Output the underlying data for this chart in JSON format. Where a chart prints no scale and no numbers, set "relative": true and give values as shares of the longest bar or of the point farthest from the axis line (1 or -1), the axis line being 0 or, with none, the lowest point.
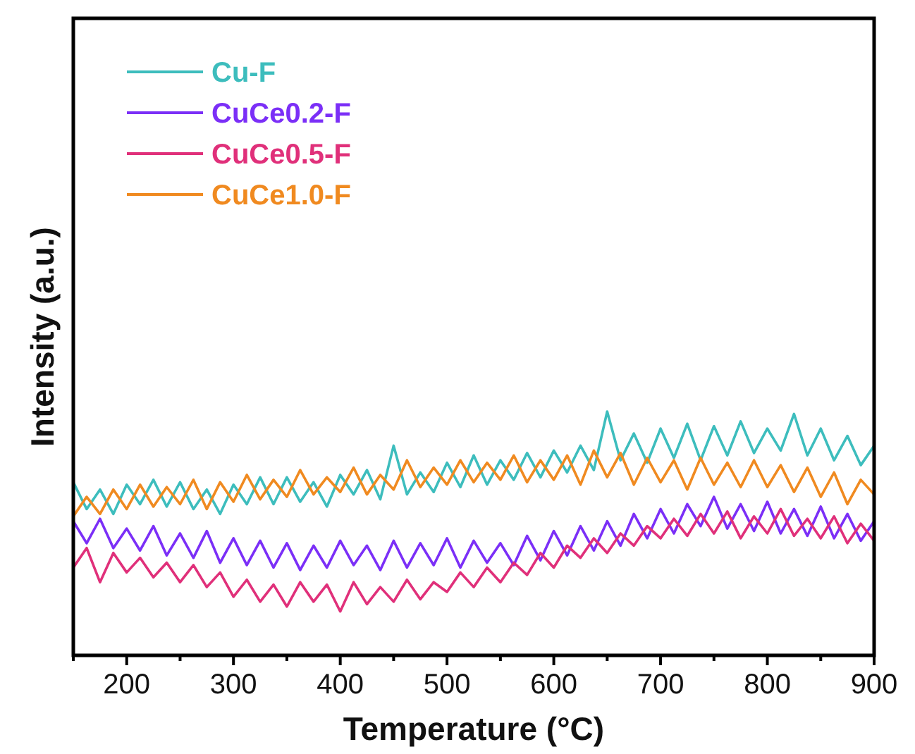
{
  "chart_data": {
    "type": "line",
    "relative": true,
    "xlabel": "Temperature (°C)",
    "ylabel": "Intensity (a.u.)",
    "xlim": [
      150,
      900
    ],
    "xticks": [
      {
        "value": 150,
        "label": null
      },
      200,
      {
        "value": 250,
        "label": null
      },
      300,
      {
        "value": 350,
        "label": null
      },
      400,
      {
        "value": 450,
        "label": null
      },
      500,
      {
        "value": 550,
        "label": null
      },
      600,
      {
        "value": 650,
        "label": null
      },
      700,
      {
        "value": 750,
        "label": null
      },
      800,
      {
        "value": 850,
        "label": null
      },
      900
    ],
    "legend": "top left",
    "grid": false,
    "marker": "none",
    "line_style": "solid",
    "x": [
      150,
      162.5,
      175,
      187.5,
      200,
      212.5,
      225,
      237.5,
      250,
      262.5,
      275,
      287.5,
      300,
      312.5,
      325,
      337.5,
      350,
      362.5,
      375,
      387.5,
      400,
      412.5,
      425,
      437.5,
      450,
      462.5,
      475,
      487.5,
      500,
      512.5,
      525,
      537.5,
      550,
      562.5,
      575,
      587.5,
      600,
      612.5,
      625,
      637.5,
      650,
      662.5,
      675,
      687.5,
      700,
      712.5,
      725,
      737.5,
      750,
      762.5,
      775,
      787.5,
      800,
      812.5,
      825,
      837.5,
      850,
      862.5,
      875,
      887.5,
      900
    ],
    "series": [
      {
        "name": "Cu-F",
        "color": "#3dbdbd",
        "values": [
          0.71,
          0.6,
          0.68,
          0.58,
          0.7,
          0.62,
          0.72,
          0.61,
          0.71,
          0.6,
          0.68,
          0.58,
          0.7,
          0.62,
          0.73,
          0.62,
          0.73,
          0.63,
          0.71,
          0.61,
          0.74,
          0.66,
          0.76,
          0.64,
          0.86,
          0.66,
          0.75,
          0.67,
          0.79,
          0.69,
          0.82,
          0.7,
          0.8,
          0.72,
          0.83,
          0.73,
          0.84,
          0.75,
          0.86,
          0.76,
          1.0,
          0.8,
          0.91,
          0.79,
          0.93,
          0.81,
          0.95,
          0.8,
          0.94,
          0.82,
          0.96,
          0.83,
          0.93,
          0.84,
          0.99,
          0.82,
          0.93,
          0.8,
          0.9,
          0.78,
          0.86
        ]
      },
      {
        "name": "CuCe0.2-F",
        "color": "#7b2ff7",
        "values": [
          0.55,
          0.46,
          0.56,
          0.44,
          0.52,
          0.43,
          0.53,
          0.41,
          0.5,
          0.4,
          0.51,
          0.38,
          0.48,
          0.37,
          0.47,
          0.36,
          0.46,
          0.35,
          0.45,
          0.36,
          0.47,
          0.37,
          0.45,
          0.35,
          0.47,
          0.36,
          0.46,
          0.37,
          0.48,
          0.36,
          0.47,
          0.38,
          0.46,
          0.37,
          0.49,
          0.39,
          0.51,
          0.41,
          0.53,
          0.43,
          0.55,
          0.45,
          0.58,
          0.48,
          0.6,
          0.5,
          0.62,
          0.53,
          0.65,
          0.52,
          0.62,
          0.51,
          0.63,
          0.5,
          0.6,
          0.49,
          0.61,
          0.48,
          0.58,
          0.47,
          0.55
        ]
      },
      {
        "name": "CuCe0.5-F",
        "color": "#e0307a",
        "values": [
          0.36,
          0.44,
          0.3,
          0.42,
          0.34,
          0.4,
          0.32,
          0.38,
          0.3,
          0.37,
          0.28,
          0.34,
          0.24,
          0.31,
          0.22,
          0.29,
          0.2,
          0.3,
          0.22,
          0.29,
          0.18,
          0.3,
          0.21,
          0.28,
          0.22,
          0.31,
          0.23,
          0.3,
          0.26,
          0.34,
          0.28,
          0.36,
          0.3,
          0.38,
          0.33,
          0.42,
          0.36,
          0.45,
          0.4,
          0.48,
          0.42,
          0.5,
          0.45,
          0.53,
          0.48,
          0.56,
          0.49,
          0.58,
          0.5,
          0.59,
          0.48,
          0.57,
          0.5,
          0.6,
          0.49,
          0.56,
          0.48,
          0.57,
          0.46,
          0.54,
          0.47
        ]
      },
      {
        "name": "CuCe1.0-F",
        "color": "#f08a20",
        "values": [
          0.57,
          0.65,
          0.58,
          0.68,
          0.6,
          0.7,
          0.61,
          0.69,
          0.62,
          0.72,
          0.6,
          0.71,
          0.63,
          0.74,
          0.64,
          0.72,
          0.65,
          0.76,
          0.66,
          0.73,
          0.67,
          0.77,
          0.66,
          0.74,
          0.68,
          0.8,
          0.69,
          0.77,
          0.7,
          0.8,
          0.71,
          0.79,
          0.72,
          0.82,
          0.71,
          0.8,
          0.72,
          0.82,
          0.7,
          0.84,
          0.73,
          0.83,
          0.7,
          0.81,
          0.71,
          0.8,
          0.68,
          0.81,
          0.7,
          0.79,
          0.69,
          0.8,
          0.69,
          0.78,
          0.67,
          0.77,
          0.65,
          0.75,
          0.62,
          0.72,
          0.66
        ]
      }
    ]
  }
}
